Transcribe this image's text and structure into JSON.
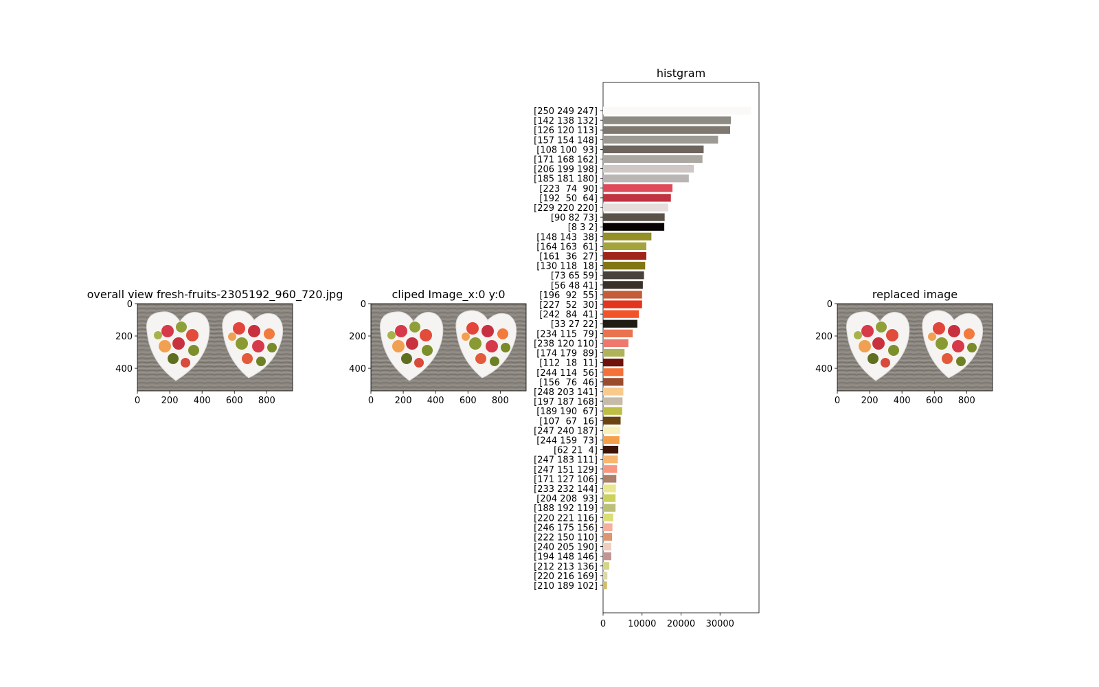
{
  "panels": [
    {
      "title": "overall view fresh-fruits-2305192_960_720.jpg",
      "xticks": [
        "0",
        "200",
        "400",
        "600",
        "800"
      ],
      "yticks": [
        "0",
        "200",
        "400"
      ]
    },
    {
      "title": "cliped Image_x:0 y:0",
      "xticks": [
        "0",
        "200",
        "400",
        "600",
        "800"
      ],
      "yticks": [
        "0",
        "200",
        "400"
      ]
    },
    {
      "title": "replaced image",
      "xticks": [
        "0",
        "200",
        "400",
        "600",
        "800"
      ],
      "yticks": [
        "0",
        "200",
        "400"
      ]
    }
  ],
  "image_extent": {
    "x": [
      0,
      960
    ],
    "y": [
      0,
      540
    ]
  },
  "chart_data": {
    "type": "bar",
    "orientation": "horizontal",
    "title": "histgram",
    "xlabel": "",
    "ylabel": "",
    "xlim": [
      0,
      40000
    ],
    "xticks": [
      "0",
      "10000",
      "20000",
      "30000"
    ],
    "grid": false,
    "categories": [
      "[250 249 247]",
      "[142 138 132]",
      "[126 120 113]",
      "[157 154 148]",
      "[108 100  93]",
      "[171 168 162]",
      "[206 199 198]",
      "[185 181 180]",
      "[223  74  90]",
      "[192  50  64]",
      "[229 220 220]",
      "[90 82 73]",
      "[8 3 2]",
      "[148 143  38]",
      "[164 163  61]",
      "[161  36  27]",
      "[130 118  18]",
      "[73 65 59]",
      "[56 48 41]",
      "[196  92  55]",
      "[227  52  30]",
      "[242  84  41]",
      "[33 27 22]",
      "[234 115  79]",
      "[238 120 110]",
      "[174 179  89]",
      "[112  18  11]",
      "[244 114  56]",
      "[156  76  46]",
      "[248 203 141]",
      "[197 187 168]",
      "[189 190  67]",
      "[107  67  16]",
      "[247 240 187]",
      "[244 159  73]",
      "[62 21  4]",
      "[247 183 111]",
      "[247 151 129]",
      "[171 127 106]",
      "[233 232 144]",
      "[204 208  93]",
      "[188 192 119]",
      "[220 221 116]",
      "[246 175 156]",
      "[222 150 110]",
      "[240 205 190]",
      "[194 148 146]",
      "[212 213 136]",
      "[220 216 169]",
      "[210 189 102]"
    ],
    "values": [
      38000,
      32800,
      32600,
      29500,
      25800,
      25500,
      23300,
      22000,
      17800,
      17400,
      16700,
      15800,
      15700,
      12400,
      11100,
      11100,
      10800,
      10500,
      10200,
      10000,
      10000,
      9200,
      8800,
      7600,
      6500,
      5500,
      5200,
      5200,
      5200,
      5200,
      5000,
      4900,
      4500,
      4400,
      4200,
      3900,
      3800,
      3600,
      3400,
      3300,
      3200,
      3200,
      2600,
      2400,
      2300,
      2100,
      2100,
      1600,
      1100,
      1000
    ],
    "colors": [
      "#faf9f7",
      "#8e8a84",
      "#7e7871",
      "#9d9a94",
      "#6c645d",
      "#aba8a2",
      "#cec7c6",
      "#b9b5b4",
      "#df4a5a",
      "#c03240",
      "#e5dcdc",
      "#5a5249",
      "#080302",
      "#948f26",
      "#a4a33d",
      "#a1241b",
      "#827612",
      "#49413b",
      "#383029",
      "#c45c37",
      "#e3341e",
      "#f25429",
      "#211b16",
      "#ea734f",
      "#ee786e",
      "#aeb359",
      "#70120b",
      "#f47238",
      "#9c4c2e",
      "#f8cb8d",
      "#c5bba8",
      "#bdbe43",
      "#6b4310",
      "#f7f0bb",
      "#f49f49",
      "#3e1504",
      "#f7b76f",
      "#f79781",
      "#ab7f6a",
      "#e9e890",
      "#ccd05d",
      "#bcc077",
      "#dcdd74",
      "#f6af9c",
      "#de966e",
      "#f0cdbe",
      "#c29492",
      "#d4d588",
      "#dcd8a9",
      "#d2bd66"
    ]
  }
}
